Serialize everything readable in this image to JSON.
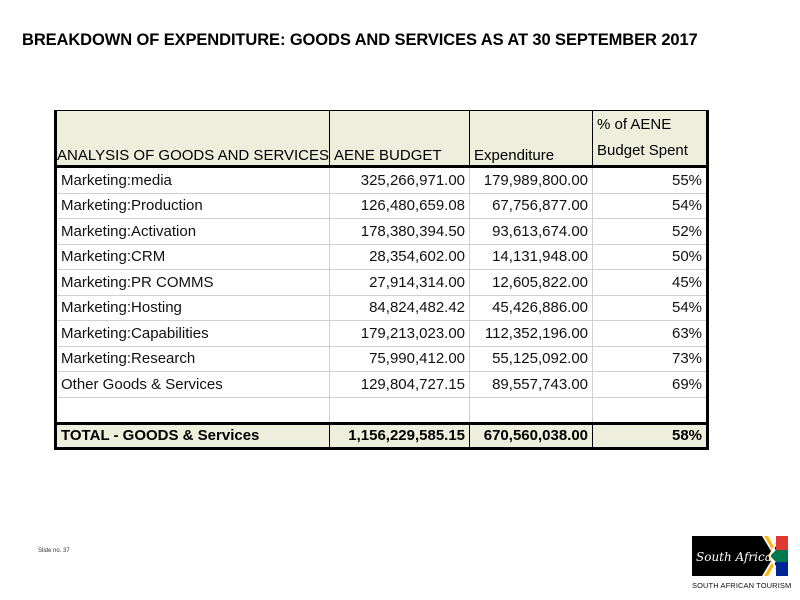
{
  "title": "BREAKDOWN OF EXPENDITURE: GOODS AND SERVICES AS AT 30 SEPTEMBER 2017",
  "table": {
    "headers": [
      "ANALYSIS OF GOODS AND SERVICES",
      "AENE BUDGET",
      "Expenditure",
      "% of AENE Budget Spent"
    ],
    "header_lines_col4": [
      "% of AENE",
      "Budget Spent"
    ],
    "rows": [
      {
        "label": "Marketing:media",
        "budget": "325,266,971.00",
        "expenditure": "179,989,800.00",
        "pct": "55%"
      },
      {
        "label": "Marketing:Production",
        "budget": "126,480,659.08",
        "expenditure": "67,756,877.00",
        "pct": "54%"
      },
      {
        "label": "Marketing:Activation",
        "budget": "178,380,394.50",
        "expenditure": "93,613,674.00",
        "pct": "52%"
      },
      {
        "label": "Marketing:CRM",
        "budget": "28,354,602.00",
        "expenditure": "14,131,948.00",
        "pct": "50%"
      },
      {
        "label": "Marketing:PR COMMS",
        "budget": "27,914,314.00",
        "expenditure": "12,605,822.00",
        "pct": "45%"
      },
      {
        "label": "Marketing:Hosting",
        "budget": "84,824,482.42",
        "expenditure": "45,426,886.00",
        "pct": "54%"
      },
      {
        "label": "Marketing:Capabilities",
        "budget": "179,213,023.00",
        "expenditure": "112,352,196.00",
        "pct": "63%"
      },
      {
        "label": "Marketing:Research",
        "budget": "75,990,412.00",
        "expenditure": "55,125,092.00",
        "pct": "73%"
      },
      {
        "label": "Other Goods & Services",
        "budget": "129,804,727.15",
        "expenditure": "89,557,743.00",
        "pct": "69%"
      }
    ],
    "total": {
      "label": "TOTAL  - GOODS & Services",
      "budget": "1,156,229,585.15",
      "expenditure": "670,560,038.00",
      "pct": "58%"
    }
  },
  "slide_number": "Slide no. 37",
  "logo": {
    "script_text": "South Africa",
    "caption": "SOUTH AFRICAN TOURISM"
  },
  "colors": {
    "header_fill": "#eeeedd",
    "flag_green": "#007a4d",
    "flag_red": "#de3831",
    "flag_blue": "#002395",
    "flag_gold": "#ffb612"
  }
}
